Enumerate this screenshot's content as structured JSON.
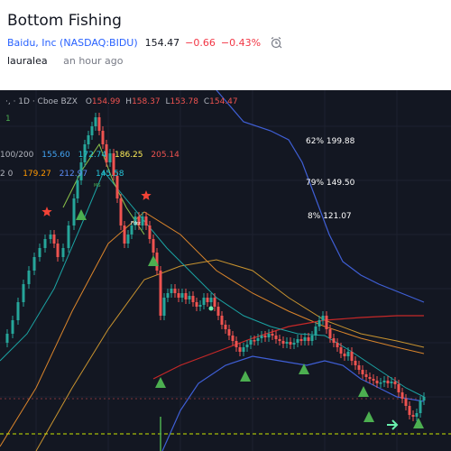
{
  "header": {
    "title": "Bottom Fishing",
    "symbol": "Baidu, Inc (NASDAQ:BIDU)",
    "price": "154.47",
    "change": "−0.66",
    "change_pct": "−0.43%",
    "author": "lauralea",
    "time_ago": "an hour ago"
  },
  "chart": {
    "interval_exchange": "·, · 1D · Cboe BZX",
    "ohlc": {
      "o_label": "O",
      "o": "154.99",
      "h_label": "H",
      "h": "158.37",
      "l_label": "L",
      "l": "153.78",
      "c_label": "C",
      "c": "154.47"
    },
    "indicator_count": "1",
    "ma_row1_label": "100/200",
    "ma_row1_values": [
      "155.60",
      "172.74",
      "186.25",
      "205.14"
    ],
    "ma_row2_label": "2 0",
    "ma_row2_values": [
      "179.27",
      "212.97",
      "145.58"
    ],
    "fib_labels": [
      {
        "pct": "62%",
        "value": "199.88"
      },
      {
        "pct": "79%",
        "value": "149.50"
      },
      {
        "pct": "8%",
        "value": "121.07"
      }
    ],
    "tiny_labels": [
      "MS",
      "Fdrz"
    ],
    "colors": {
      "background": "#131722",
      "up": "#26a69a",
      "down": "#ef5350",
      "bollinger": "#3f5fd6",
      "ma_orange": "#d9842b",
      "ma_red": "#c62828",
      "ma_teal": "#1ba3a3",
      "ma_yellow": "#e6d34a",
      "triangle": "#4caf50",
      "star": "#f44336",
      "dash": "#c8e600"
    }
  }
}
